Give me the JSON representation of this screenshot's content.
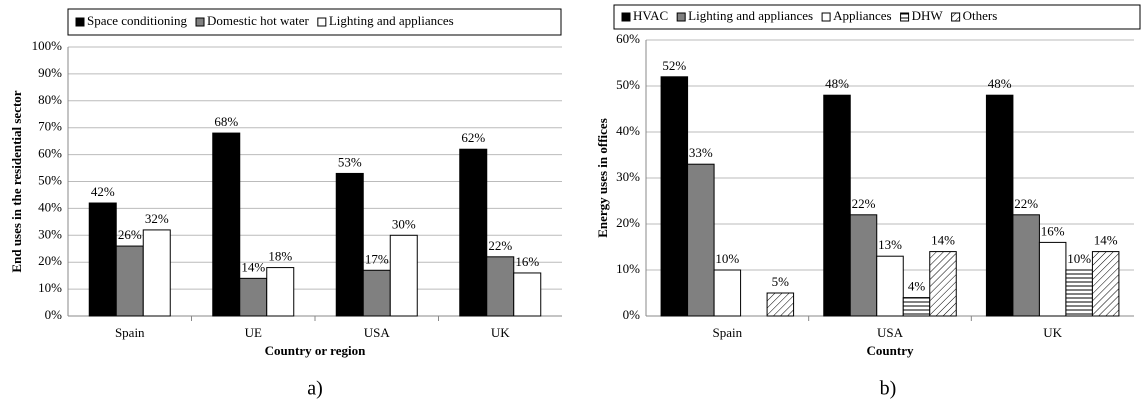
{
  "chart_data": [
    {
      "type": "bar",
      "caption": "a)",
      "x_label": "Country or region",
      "y_label": "End uses in the residential sector",
      "categories": [
        "Spain",
        "UE",
        "USA",
        "UK"
      ],
      "series": [
        {
          "name": "Space conditioning",
          "color": "#000000",
          "values": [
            42,
            68,
            53,
            62
          ],
          "value_labels": [
            "42%",
            "68%",
            "53%",
            "62%"
          ]
        },
        {
          "name": "Domestic hot water",
          "color": "#808080",
          "values": [
            26,
            14,
            17,
            22
          ],
          "value_labels": [
            "26%",
            "14%",
            "17%",
            "22%"
          ]
        },
        {
          "name": "Lighting and appliances",
          "color": "#ffffff",
          "values": [
            32,
            18,
            30,
            16
          ],
          "value_labels": [
            "32%",
            "18%",
            "30%",
            "16%"
          ]
        }
      ],
      "ylim": [
        0,
        100
      ],
      "yticks": [
        {
          "value": 0,
          "label": "0%"
        },
        {
          "value": 10,
          "label": "10%"
        },
        {
          "value": 20,
          "label": "20%"
        },
        {
          "value": 30,
          "label": "30%"
        },
        {
          "value": 40,
          "label": "40%"
        },
        {
          "value": 50,
          "label": "50%"
        },
        {
          "value": 60,
          "label": "60%"
        },
        {
          "value": 70,
          "label": "70%"
        },
        {
          "value": 80,
          "label": "80%"
        },
        {
          "value": 90,
          "label": "90%"
        },
        {
          "value": 100,
          "label": "100%"
        }
      ],
      "grid": true,
      "legend": "top"
    },
    {
      "type": "bar",
      "caption": "b)",
      "x_label": "Country",
      "y_label": "Energy uses in offices",
      "categories": [
        "Spain",
        "USA",
        "UK"
      ],
      "series": [
        {
          "name": "HVAC",
          "color": "#000000",
          "values": [
            52,
            48,
            48
          ],
          "value_labels": [
            "52%",
            "48%",
            "48%"
          ]
        },
        {
          "name": "Lighting and appliances",
          "color": "#808080",
          "values": [
            33,
            22,
            22
          ],
          "value_labels": [
            "33%",
            "22%",
            "22%"
          ]
        },
        {
          "name": "Appliances",
          "color": "#ffffff",
          "values": [
            10,
            13,
            16
          ],
          "value_labels": [
            "10%",
            "13%",
            "16%"
          ]
        },
        {
          "name": "DHW",
          "color": "#ffffff",
          "pattern": "horizontal",
          "values": [
            null,
            4,
            10
          ],
          "value_labels": [
            null,
            "4%",
            "10%"
          ]
        },
        {
          "name": "Others",
          "color": "#ffffff",
          "pattern": "diagonal",
          "values": [
            5,
            14,
            14
          ],
          "value_labels": [
            "5%",
            "14%",
            "14%"
          ]
        }
      ],
      "ylim": [
        0,
        60
      ],
      "yticks": [
        {
          "value": 0,
          "label": "0%"
        },
        {
          "value": 10,
          "label": "10%"
        },
        {
          "value": 20,
          "label": "20%"
        },
        {
          "value": 30,
          "label": "30%"
        },
        {
          "value": 40,
          "label": "40%"
        },
        {
          "value": 50,
          "label": "50%"
        },
        {
          "value": 60,
          "label": "60%"
        }
      ],
      "grid": true,
      "legend": "top"
    }
  ]
}
